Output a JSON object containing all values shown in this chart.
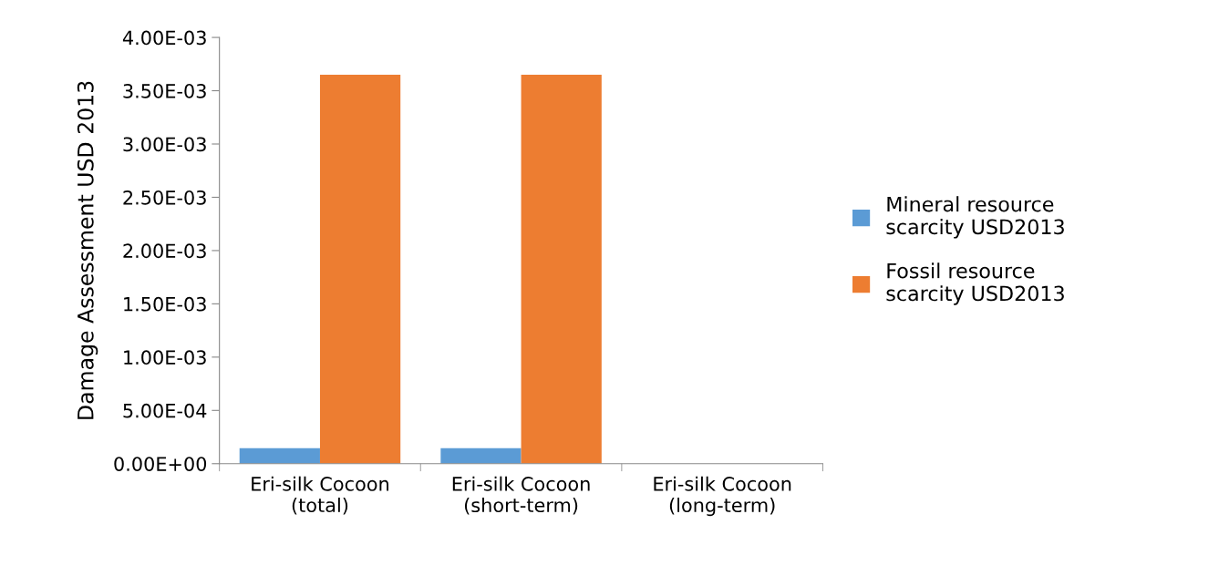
{
  "chart_data": {
    "type": "bar",
    "ylabel": "Damage Assessment USD 2013",
    "categories": [
      "Eri-silk Cocoon\n(total)",
      "Eri-silk Cocoon\n(short-term)",
      "Eri-silk Cocoon\n(long-term)"
    ],
    "series": [
      {
        "name": "Mineral resource\nscarcity USD2013",
        "color": "#5b9bd5",
        "values": [
          0.000145,
          0.000145,
          0
        ]
      },
      {
        "name": "Fossil resource\nscarcity USD2013",
        "color": "#ed7d31",
        "values": [
          0.00365,
          0.00365,
          0
        ]
      }
    ],
    "ylim": [
      0,
      0.004
    ],
    "yticks": [
      {
        "value": 0,
        "label": "0.00E+00"
      },
      {
        "value": 0.0005,
        "label": "5.00E-04"
      },
      {
        "value": 0.001,
        "label": "1.00E-03"
      },
      {
        "value": 0.0015,
        "label": "1.50E-03"
      },
      {
        "value": 0.002,
        "label": "2.00E-03"
      },
      {
        "value": 0.0025,
        "label": "2.50E-03"
      },
      {
        "value": 0.003,
        "label": "3.00E-03"
      },
      {
        "value": 0.0035,
        "label": "3.50E-03"
      },
      {
        "value": 0.004,
        "label": "4.00E-03"
      }
    ],
    "grid": false,
    "legend": "right"
  }
}
